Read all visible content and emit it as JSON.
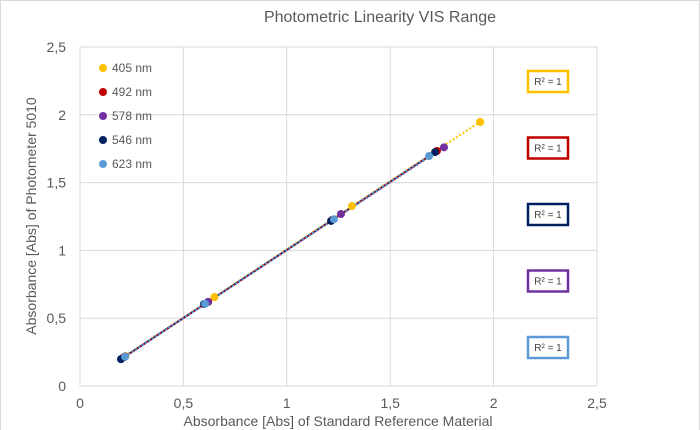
{
  "chart_data": {
    "type": "scatter",
    "title": "Photometric Linearity VIS Range",
    "xlabel": "Absorbance [Abs] of Standard Reference Material",
    "ylabel": "Absorbance [Abs] of Photometer 5010",
    "xlim": [
      0,
      2.5
    ],
    "ylim": [
      0,
      2.5
    ],
    "xticks": [
      "0",
      "0,5",
      "1",
      "1,5",
      "2",
      "2,5"
    ],
    "yticks": [
      "0",
      "0,5",
      "1",
      "1,5",
      "2",
      "2,5"
    ],
    "grid": true,
    "legend_position": "top-left",
    "series": [
      {
        "name": "405 nm",
        "color": "#FFC000",
        "x": [
          0.22,
          0.65,
          1.315,
          1.935
        ],
        "y": [
          0.22,
          0.656,
          1.327,
          1.947
        ],
        "r2_label": "R² = 1"
      },
      {
        "name": "492 nm",
        "color": "#C00000",
        "x": [
          0.21,
          0.62,
          1.22,
          1.726
        ],
        "y": [
          0.21,
          0.62,
          1.225,
          1.733
        ],
        "r2_label": "R² = 1"
      },
      {
        "name": "578 nm",
        "color": "#7030A0",
        "x": [
          0.218,
          0.619,
          1.262,
          1.76
        ],
        "y": [
          0.218,
          0.62,
          1.268,
          1.76
        ],
        "r2_label": "R² = 1"
      },
      {
        "name": "546 nm",
        "color": "#002060",
        "x": [
          0.198,
          0.6,
          1.214,
          1.717
        ],
        "y": [
          0.198,
          0.605,
          1.217,
          1.725
        ],
        "r2_label": "R² = 1"
      },
      {
        "name": "623 nm",
        "color": "#5B9BD5",
        "x": [
          0.218,
          0.605,
          1.228,
          1.688
        ],
        "y": [
          0.215,
          0.607,
          1.23,
          1.696
        ],
        "r2_label": "R² = 1"
      }
    ],
    "r2_box_order": [
      "405 nm",
      "492 nm",
      "546 nm",
      "578 nm",
      "623 nm"
    ]
  }
}
